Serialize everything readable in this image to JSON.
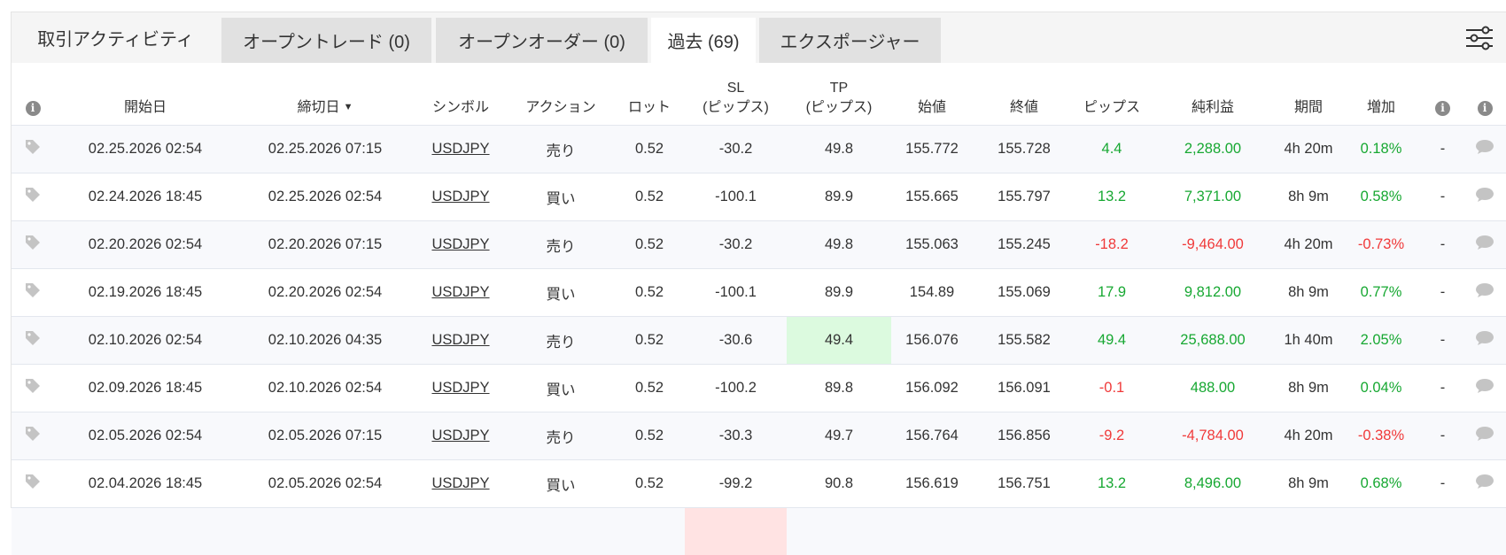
{
  "tabs": {
    "title": "取引アクティビティ",
    "open_trades": "オープントレード (0)",
    "open_orders": "オープンオーダー (0)",
    "history": "過去 (69)",
    "exposure": "エクスポージャー"
  },
  "colors": {
    "positive": "#17a832",
    "negative": "#f03a3a",
    "highlight_green": "#dcfadf",
    "highlight_red": "#ffe3e3"
  },
  "columns": {
    "open_date": "開始日",
    "close_date": "締切日",
    "sort_indicator": "▼",
    "symbol": "シンボル",
    "action": "アクション",
    "lots": "ロット",
    "sl": "SL",
    "sl_unit": "(ピップス)",
    "tp": "TP",
    "tp_unit": "(ピップス)",
    "open_price": "始値",
    "close_price": "終値",
    "pips": "ピップス",
    "net_profit": "純利益",
    "duration": "期間",
    "gain": "増加"
  },
  "rows": [
    {
      "open": "02.25.2026 02:54",
      "close": "02.25.2026 07:15",
      "symbol": "USDJPY",
      "action": "売り",
      "lots": "0.52",
      "sl": "-30.2",
      "tp": "49.8",
      "open_price": "155.772",
      "close_price": "155.728",
      "pips": "4.4",
      "profit": "2,288.00",
      "duration": "4h 20m",
      "gain": "0.18%",
      "comment": "-",
      "sign": "pos"
    },
    {
      "open": "02.24.2026 18:45",
      "close": "02.25.2026 02:54",
      "symbol": "USDJPY",
      "action": "買い",
      "lots": "0.52",
      "sl": "-100.1",
      "tp": "89.9",
      "open_price": "155.665",
      "close_price": "155.797",
      "pips": "13.2",
      "profit": "7,371.00",
      "duration": "8h 9m",
      "gain": "0.58%",
      "comment": "-",
      "sign": "pos"
    },
    {
      "open": "02.20.2026 02:54",
      "close": "02.20.2026 07:15",
      "symbol": "USDJPY",
      "action": "売り",
      "lots": "0.52",
      "sl": "-30.2",
      "tp": "49.8",
      "open_price": "155.063",
      "close_price": "155.245",
      "pips": "-18.2",
      "profit": "-9,464.00",
      "duration": "4h 20m",
      "gain": "-0.73%",
      "comment": "-",
      "sign": "neg"
    },
    {
      "open": "02.19.2026 18:45",
      "close": "02.20.2026 02:54",
      "symbol": "USDJPY",
      "action": "買い",
      "lots": "0.52",
      "sl": "-100.1",
      "tp": "89.9",
      "open_price": "154.89",
      "close_price": "155.069",
      "pips": "17.9",
      "profit": "9,812.00",
      "duration": "8h 9m",
      "gain": "0.77%",
      "comment": "-",
      "sign": "pos"
    },
    {
      "open": "02.10.2026 02:54",
      "close": "02.10.2026 04:35",
      "symbol": "USDJPY",
      "action": "売り",
      "lots": "0.52",
      "sl": "-30.6",
      "tp": "49.4",
      "open_price": "156.076",
      "close_price": "155.582",
      "pips": "49.4",
      "profit": "25,688.00",
      "duration": "1h 40m",
      "gain": "2.05%",
      "comment": "-",
      "sign": "pos",
      "tp_hit": true
    },
    {
      "open": "02.09.2026 18:45",
      "close": "02.10.2026 02:54",
      "symbol": "USDJPY",
      "action": "買い",
      "lots": "0.52",
      "sl": "-100.2",
      "tp": "89.8",
      "open_price": "156.092",
      "close_price": "156.091",
      "pips": "-0.1",
      "profit": "488.00",
      "duration": "8h 9m",
      "gain": "0.04%",
      "comment": "-",
      "sign": "mixed"
    },
    {
      "open": "02.05.2026 02:54",
      "close": "02.05.2026 07:15",
      "symbol": "USDJPY",
      "action": "売り",
      "lots": "0.52",
      "sl": "-30.3",
      "tp": "49.7",
      "open_price": "156.764",
      "close_price": "156.856",
      "pips": "-9.2",
      "profit": "-4,784.00",
      "duration": "4h 20m",
      "gain": "-0.38%",
      "comment": "-",
      "sign": "neg"
    },
    {
      "open": "02.04.2026 18:45",
      "close": "02.05.2026 02:54",
      "symbol": "USDJPY",
      "action": "買い",
      "lots": "0.52",
      "sl": "-99.2",
      "tp": "90.8",
      "open_price": "156.619",
      "close_price": "156.751",
      "pips": "13.2",
      "profit": "8,496.00",
      "duration": "8h 9m",
      "gain": "0.68%",
      "comment": "-",
      "sign": "pos"
    }
  ]
}
